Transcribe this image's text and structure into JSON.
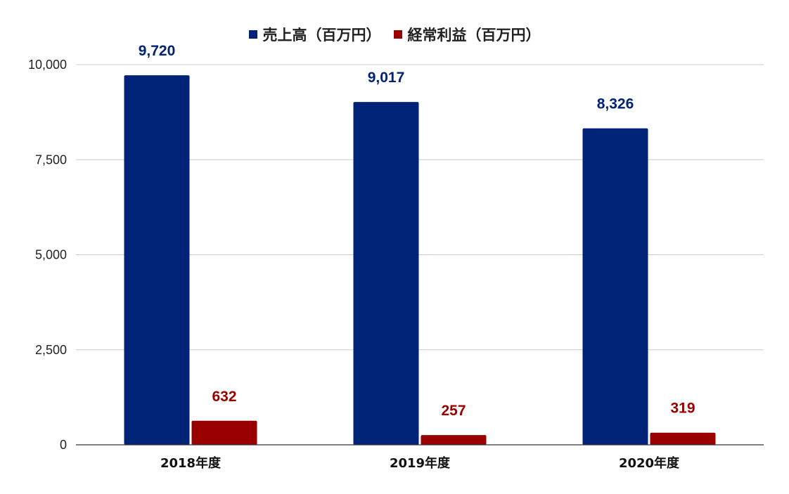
{
  "chart_data": {
    "type": "bar",
    "categories": [
      "2018年度",
      "2019年度",
      "2020年度"
    ],
    "series": [
      {
        "name": "売上高（百万円）",
        "values": [
          9720,
          9017,
          8326
        ],
        "color": "#002277"
      },
      {
        "name": "経常利益（百万円）",
        "values": [
          632,
          257,
          319
        ],
        "color": "#990000"
      }
    ],
    "data_labels": [
      [
        "9,720",
        "9,017",
        "8,326"
      ],
      [
        "632",
        "257",
        "319"
      ]
    ],
    "yticks": [
      "0",
      "2,500",
      "5,000",
      "7,500",
      "10,000"
    ],
    "ylim": [
      0,
      10000
    ],
    "grid": true,
    "legend_position": "top-center"
  }
}
